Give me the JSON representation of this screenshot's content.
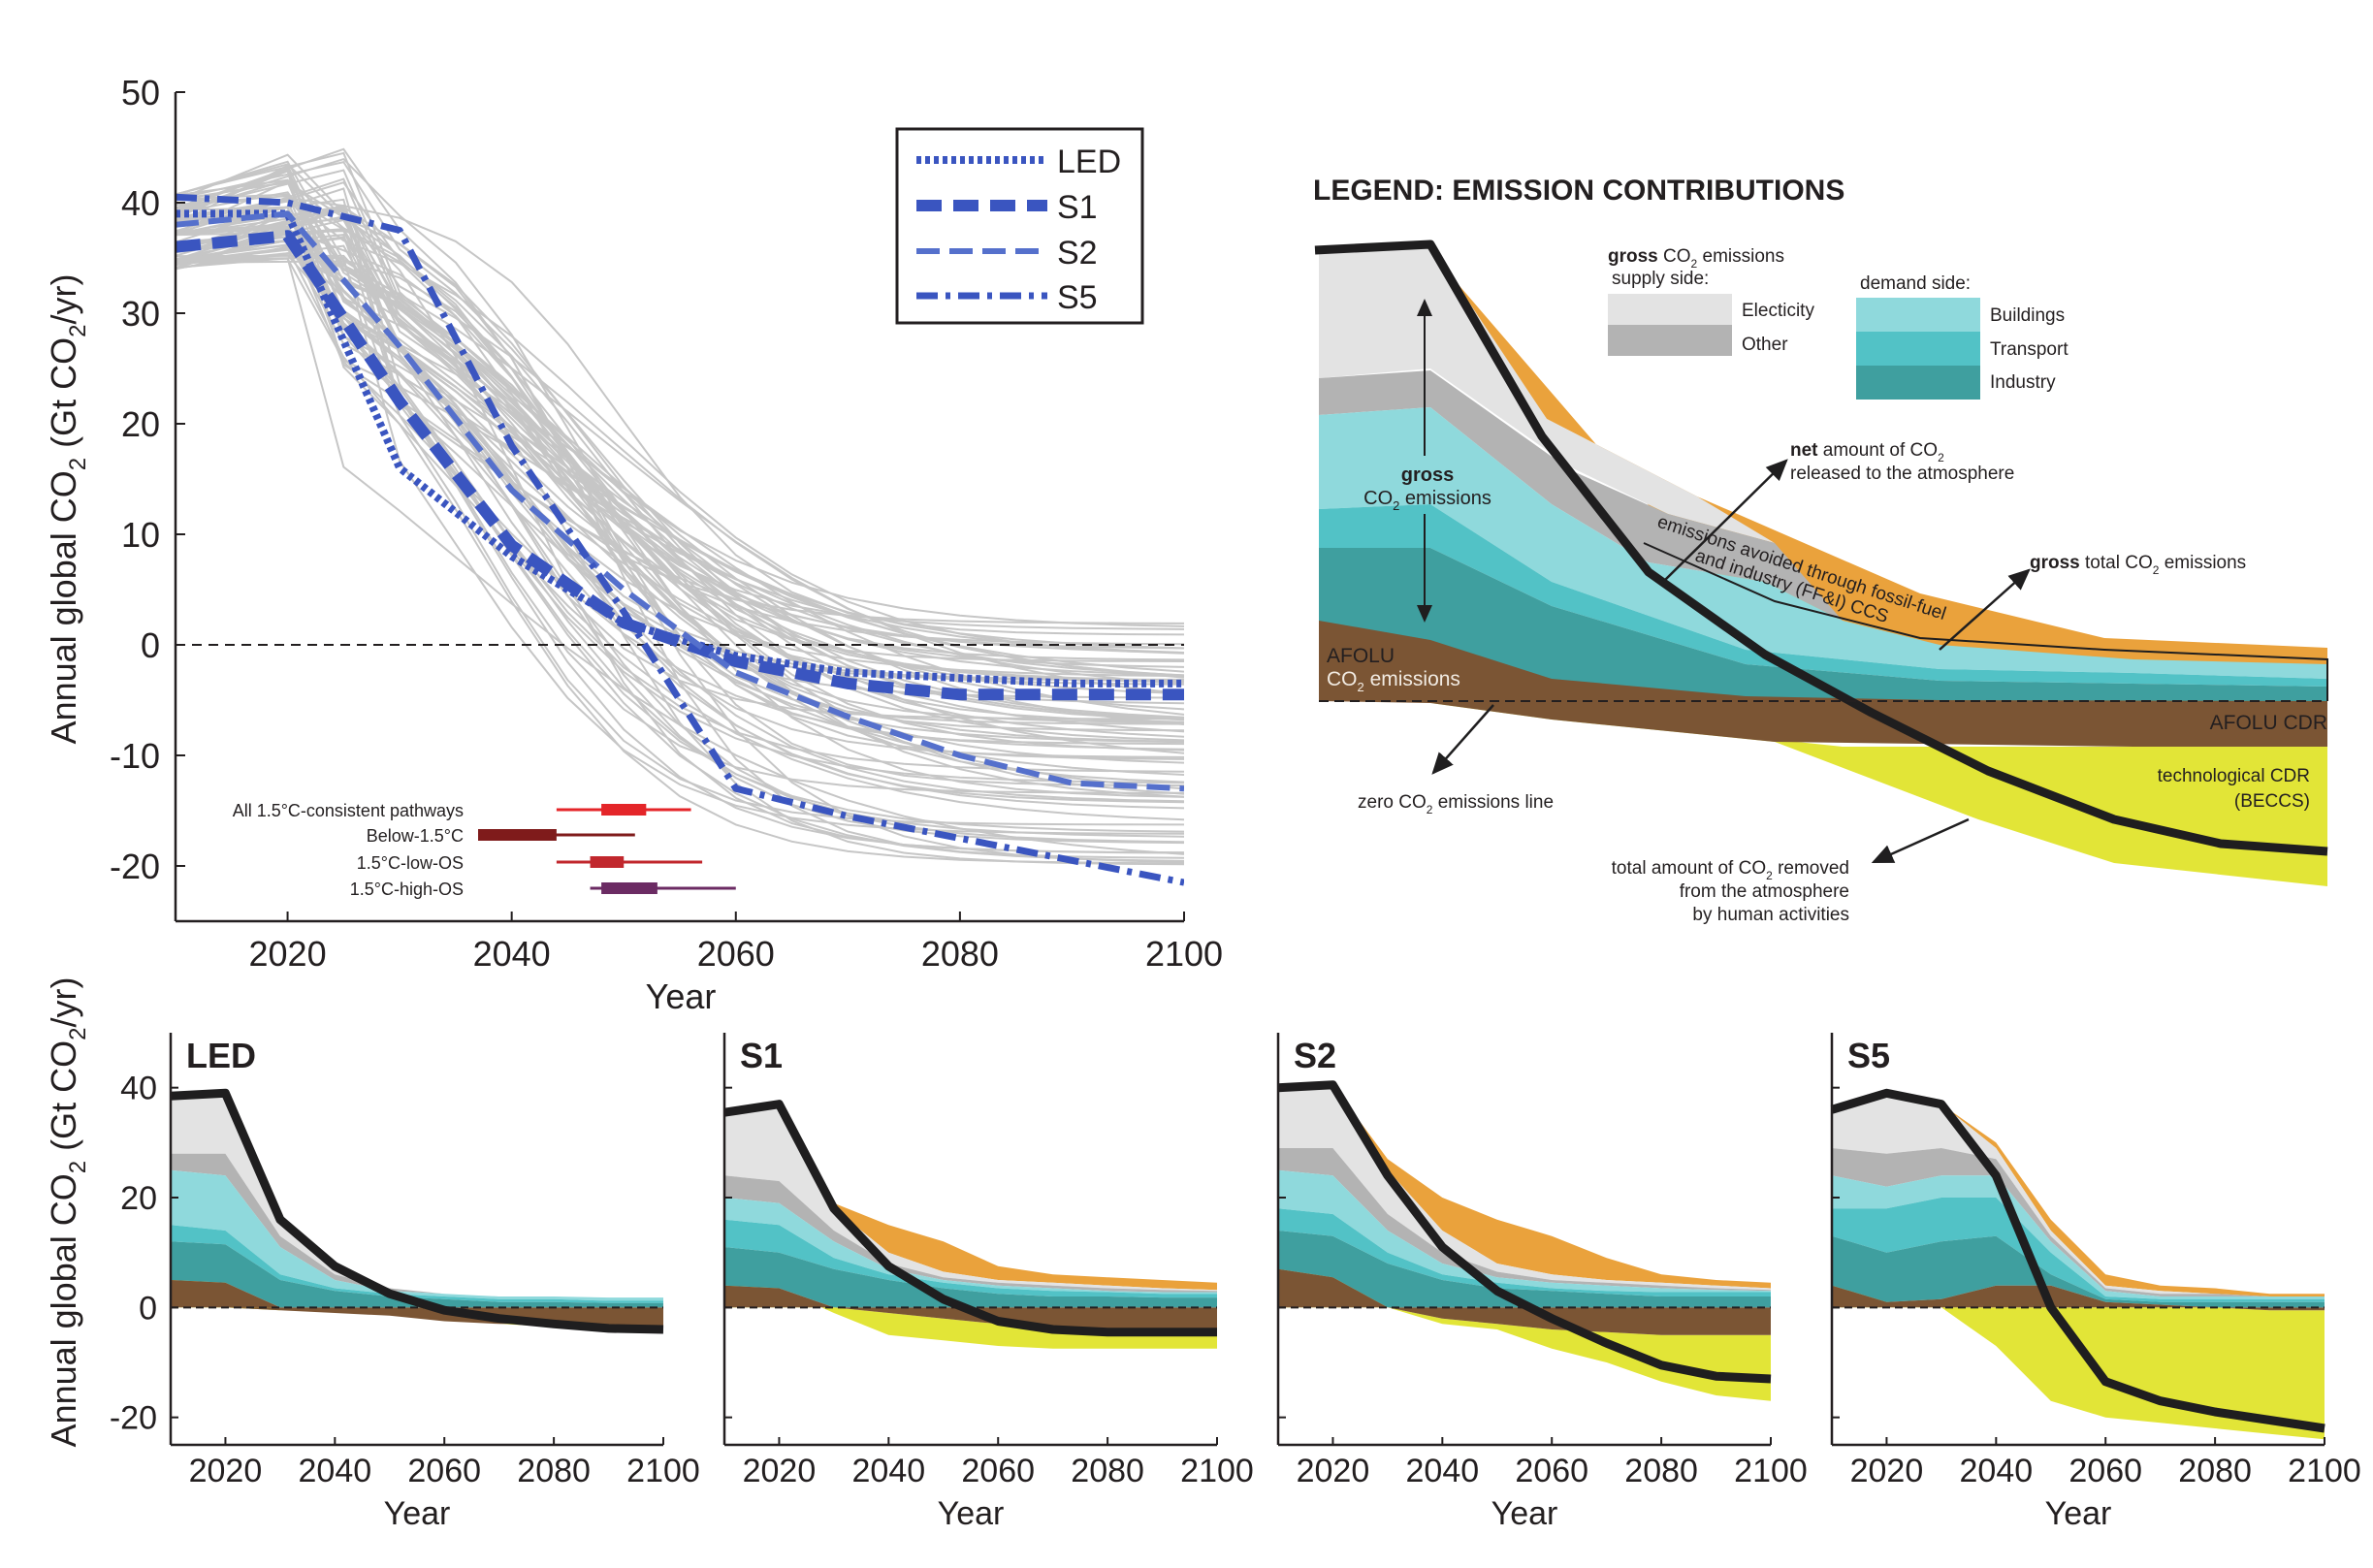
{
  "colors": {
    "gray_lines": "#c6c6c6",
    "blue": "#3a55c0",
    "blue_light": "#5570cc",
    "black": "#1f1e1f",
    "elec": "#e3e3e3",
    "other": "#b3b3b3",
    "buildings": "#8fd9dc",
    "transport": "#52c2c6",
    "industry": "#3f9f9f",
    "afolu": "#7b5534",
    "ccs": "#eaa23c",
    "cdr": "#e2e537",
    "red1": "#e42529",
    "red2": "#7f1b1b",
    "red3": "#c1272d",
    "purple": "#6b2b63"
  },
  "chart_data": [
    {
      "id": "main",
      "type": "line",
      "xlabel": "Year",
      "ylabel": "Annual global CO",
      "ylabel_sub": "2",
      "ylabel_unit": " (Gt CO",
      "ylabel_unit_sub": "2",
      "ylabel_end": "/yr)",
      "xlim": [
        2010,
        2100
      ],
      "ylim": [
        -25,
        50
      ],
      "xticks": [
        "2020",
        "2040",
        "2060",
        "2080",
        "2100"
      ],
      "yticks": [
        "50",
        "40",
        "30",
        "20",
        "10",
        "0",
        "-10",
        "-20"
      ],
      "legend": [
        "LED",
        "S1",
        "S2",
        "S5"
      ],
      "x": [
        2010,
        2020,
        2030,
        2040,
        2050,
        2060,
        2070,
        2080,
        2090,
        2100
      ],
      "series": [
        {
          "name": "LED",
          "values": [
            39,
            39,
            16,
            8,
            2,
            -1,
            -2.5,
            -3,
            -3.5,
            -3.5
          ]
        },
        {
          "name": "S1",
          "values": [
            36,
            37,
            22,
            9,
            2,
            -1.5,
            -3.5,
            -4.5,
            -4.5,
            -4.5
          ]
        },
        {
          "name": "S2",
          "values": [
            38,
            39,
            27,
            14,
            5,
            -2.5,
            -6.5,
            -10,
            -12.5,
            -13
          ]
        },
        {
          "name": "S5",
          "values": [
            40.5,
            40,
            37.5,
            18,
            3,
            -13,
            -15.5,
            -17.5,
            -19.5,
            -21.5
          ]
        }
      ],
      "ranges_title": "",
      "ranges": [
        {
          "label": "All 1.5°C-consistent pathways",
          "min": 2044,
          "q1": 2048,
          "median": 2050,
          "q3": 2052,
          "max": 2056
        },
        {
          "label": "Below-1.5°C",
          "min": 2037,
          "q1": 2037,
          "median": 2042,
          "q3": 2044,
          "max": 2051
        },
        {
          "label": "1.5°C-low-OS",
          "min": 2044,
          "q1": 2047,
          "median": 2049,
          "q3": 2050,
          "max": 2057
        },
        {
          "label": "1.5°C-high-OS",
          "min": 2047,
          "q1": 2048,
          "median": 2050,
          "q3": 2053,
          "max": 2060
        }
      ]
    },
    {
      "id": "LED",
      "type": "area",
      "title": "LED",
      "xlabel": "Year",
      "xticks": [
        "2020",
        "2040",
        "2060",
        "2080",
        "2100"
      ],
      "yticks": [
        "40",
        "20",
        "0",
        "-20"
      ],
      "xlim": [
        2010,
        2100
      ],
      "ylim": [
        -25,
        50
      ],
      "x": [
        2010,
        2020,
        2030,
        2040,
        2050,
        2060,
        2070,
        2080,
        2090,
        2100
      ],
      "afolu": [
        5,
        4.5,
        -0.5,
        -1,
        -1.5,
        -2.5,
        -3,
        -3,
        -3.5,
        -3.5
      ],
      "industry": [
        12,
        11.5,
        5,
        3,
        2,
        1.5,
        1,
        1,
        0.8,
        0.8
      ],
      "transport": [
        15,
        14,
        6,
        3.5,
        2.5,
        2,
        1.5,
        1.5,
        1.2,
        1.2
      ],
      "buildings": [
        25,
        24,
        11,
        5,
        3,
        2.5,
        2,
        2,
        1.8,
        1.8
      ],
      "other": [
        28,
        28,
        13,
        6,
        3.5,
        2.5,
        2,
        2,
        1.8,
        1.8
      ],
      "elec": [
        38.5,
        39,
        16,
        7.5,
        3.5,
        2.5,
        2,
        2,
        1.8,
        1.8
      ],
      "ccs": [
        38.5,
        39,
        16,
        7.5,
        3.5,
        2.5,
        2,
        2,
        1.8,
        1.8
      ],
      "cdr": [
        5,
        4.5,
        -0.5,
        -1,
        -1.5,
        -2.5,
        -3,
        -3.5,
        -3.8,
        -4
      ],
      "net": [
        38.5,
        39,
        16,
        7.5,
        2.5,
        -0.5,
        -2,
        -3,
        -3.8,
        -4
      ]
    },
    {
      "id": "S1",
      "type": "area",
      "title": "S1",
      "xlabel": "Year",
      "xticks": [
        "2020",
        "2040",
        "2060",
        "2080",
        "2100"
      ],
      "yticks": [],
      "xlim": [
        2010,
        2100
      ],
      "ylim": [
        -25,
        50
      ],
      "x": [
        2010,
        2020,
        2030,
        2040,
        2050,
        2060,
        2070,
        2080,
        2090,
        2100
      ],
      "afolu": [
        4,
        3.5,
        0,
        -1,
        -2,
        -3,
        -3.5,
        -4,
        -4,
        -4
      ],
      "industry": [
        11,
        10,
        7,
        5,
        3.5,
        2.5,
        2,
        2,
        1.8,
        1.8
      ],
      "transport": [
        16,
        15,
        9,
        6,
        4.5,
        3.5,
        3,
        2.8,
        2.5,
        2.5
      ],
      "buildings": [
        20,
        19,
        12,
        7,
        5,
        4,
        3.5,
        3,
        2.8,
        2.8
      ],
      "other": [
        24,
        23,
        14,
        8,
        5.5,
        4.5,
        4,
        3.5,
        3.2,
        3
      ],
      "elec": [
        35.5,
        37,
        18,
        10,
        6.5,
        5,
        4.5,
        4,
        3.5,
        3.2
      ],
      "ccs": [
        35.5,
        37,
        19,
        15,
        12,
        7.5,
        6,
        5.5,
        5,
        4.5
      ],
      "cdr": [
        4,
        3.5,
        -1,
        -5,
        -6,
        -7,
        -7.5,
        -7.5,
        -7.5,
        -7.5
      ],
      "net": [
        35.5,
        37,
        18,
        7.5,
        1.5,
        -2.5,
        -4,
        -4.5,
        -4.5,
        -4.5
      ]
    },
    {
      "id": "S2",
      "type": "area",
      "title": "S2",
      "xlabel": "Year",
      "xticks": [
        "2020",
        "2040",
        "2060",
        "2080",
        "2100"
      ],
      "yticks": [],
      "xlim": [
        2010,
        2100
      ],
      "ylim": [
        -25,
        50
      ],
      "x": [
        2010,
        2020,
        2030,
        2040,
        2050,
        2060,
        2070,
        2080,
        2090,
        2100
      ],
      "afolu": [
        7,
        5.5,
        0,
        -2,
        -3,
        -4,
        -4.5,
        -5,
        -5,
        -5
      ],
      "industry": [
        14,
        13,
        8,
        5,
        3.5,
        3,
        2.5,
        2,
        2,
        2
      ],
      "transport": [
        18,
        17,
        10,
        6,
        4.5,
        3.5,
        3,
        2.8,
        2.8,
        2.8
      ],
      "buildings": [
        25,
        24,
        14,
        8,
        5.5,
        4.5,
        4,
        3.5,
        3.2,
        3
      ],
      "other": [
        29,
        29,
        17,
        10,
        6.5,
        5,
        4.5,
        4,
        3.5,
        3.2
      ],
      "elec": [
        40,
        40.5,
        25,
        14,
        8,
        6,
        5,
        4.5,
        4,
        3.5
      ],
      "ccs": [
        40,
        40.5,
        27,
        20,
        16,
        13,
        9,
        6,
        5,
        4.5
      ],
      "cdr": [
        7,
        5.5,
        0,
        -3,
        -4,
        -7.5,
        -10,
        -13.5,
        -16,
        -17
      ],
      "net": [
        40,
        40.5,
        24,
        11,
        3,
        -2,
        -6.5,
        -10.5,
        -12.5,
        -13
      ]
    },
    {
      "id": "S5",
      "type": "area",
      "title": "S5",
      "xlabel": "Year",
      "xticks": [
        "2020",
        "2040",
        "2060",
        "2080",
        "2100"
      ],
      "yticks": [],
      "xlim": [
        2010,
        2100
      ],
      "ylim": [
        -25,
        50
      ],
      "x": [
        2010,
        2020,
        2030,
        2040,
        2050,
        2060,
        2070,
        2080,
        2090,
        2100
      ],
      "afolu": [
        4,
        1,
        1.5,
        4,
        4,
        1,
        0.5,
        0,
        -0.5,
        -0.5
      ],
      "industry": [
        13,
        10,
        12,
        13,
        6,
        1.5,
        1,
        1,
        1,
        1
      ],
      "transport": [
        18,
        18,
        20,
        20,
        10,
        2,
        1.5,
        1.5,
        1.5,
        1.5
      ],
      "buildings": [
        24,
        22,
        24,
        24,
        12,
        3,
        2,
        2,
        2,
        2
      ],
      "other": [
        29,
        28,
        29,
        27,
        13,
        3.5,
        2.5,
        2.5,
        2,
        2
      ],
      "elec": [
        36,
        39,
        37,
        29,
        14,
        4,
        3,
        2.5,
        2,
        2
      ],
      "ccs": [
        36,
        39,
        37,
        30,
        16,
        6,
        4,
        3.5,
        2.5,
        2.5
      ],
      "cdr": [
        4,
        1,
        0,
        -7,
        -17,
        -20,
        -21,
        -22,
        -23,
        -24
      ],
      "net": [
        36,
        39,
        37,
        24,
        0,
        -13.5,
        -17,
        -19,
        -20.5,
        -22
      ]
    }
  ],
  "schematic": {
    "title": "LEGEND: EMISSION CONTRIBUTIONS",
    "gross_bold": "gross",
    "gross_text1": " CO",
    "gross_sub": "2",
    "gross_text2": " emissions",
    "supply_side": "supply side:",
    "electicity": "Electicity",
    "other": "Other",
    "demand_side": "demand side:",
    "buildings": "Buildings",
    "transport": "Transport",
    "industry": "Industry",
    "gross_label_bold": "gross",
    "gross_label_line2a": "CO",
    "gross_label_line2sub": "2",
    "gross_label_line2b": " emissions",
    "net_bold": "net",
    "net_text1": " amount of CO",
    "net_sub": "2",
    "net_line2": "released to the atmosphere",
    "ccs_line1": "emissions avoided through fossil-fuel",
    "ccs_line2": "and industry (FF&I) CCS",
    "gross_total_bold": "gross",
    "gross_total_text1": " total CO",
    "gross_total_sub": "2",
    "gross_total_text2": " emissions",
    "afolu_line1": "AFOLU",
    "afolu_line2a": "CO",
    "afolu_line2sub": "2",
    "afolu_line2b": "  emissions",
    "afolu_cdr": "AFOLU CDR",
    "zero_a": "zero CO",
    "zero_sub": "2",
    "zero_b": " emissions line",
    "tech_cdr1": "technological CDR",
    "tech_cdr2": "(BECCS)",
    "removed1a": "total amount of CO",
    "removed1sub": "2",
    "removed1b": " removed",
    "removed2": "from the atmosphere",
    "removed3": "by human activities"
  }
}
